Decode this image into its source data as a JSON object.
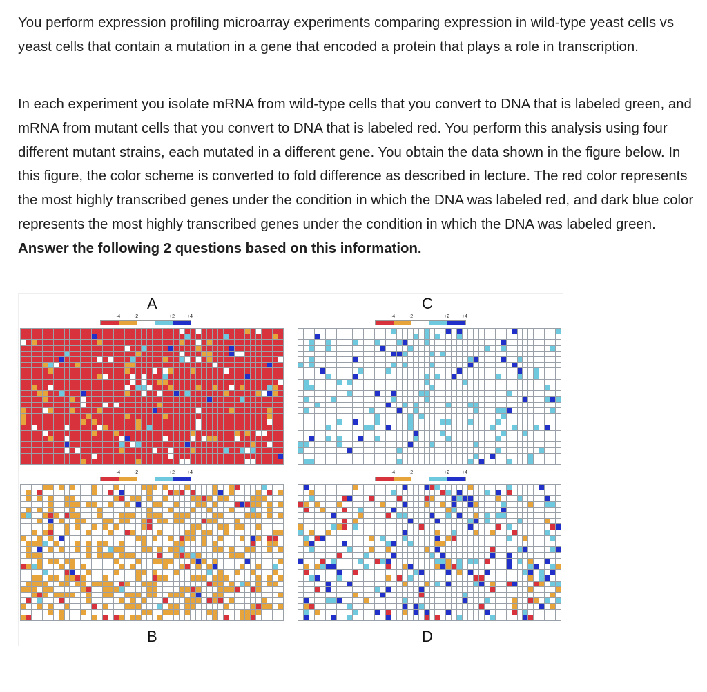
{
  "question": {
    "paragraph1": "You perform expression profiling microarray experiments comparing expression in wild-type yeast cells vs yeast cells that contain a mutation in a gene that encoded a protein that plays a role in transcription.",
    "paragraph2_text": "In each experiment you isolate mRNA from wild-type cells that you convert to DNA that is labeled green, and mRNA from mutant cells that you convert to DNA that is labeled red. You perform this analysis using four different mutant strains, each mutated in a different gene. You obtain the data shown in the figure below. In this figure, the color scheme is converted to fold difference as described in lecture. The red color represents the most highly transcribed genes under the condition in which the DNA was labeled red, and dark blue color represents the most highly transcribed genes under the condition in which the DNA was labeled green.",
    "paragraph2_bold": "Answer the following 2 questions based on this information."
  },
  "figure": {
    "panels": [
      {
        "label": "A",
        "dominant": "red"
      },
      {
        "label": "B",
        "dominant": "white-orange"
      },
      {
        "label": "C",
        "dominant": "white-light-blue"
      },
      {
        "label": "D",
        "dominant": "white-mixed"
      }
    ],
    "scale_ticks": [
      "-4",
      "-2",
      "+2",
      "+4"
    ],
    "scale_colors": {
      "minus4": "#d8323c",
      "minus2": "#e7a43a",
      "zero": "#ffffff",
      "plus2": "#6fc9de",
      "plus4": "#2030c8"
    },
    "cell_colors": {
      "red": "#d8323c",
      "orange": "#e7a43a",
      "white": "#ffffff",
      "light_blue": "#6fc9de",
      "dark_blue": "#2030c8"
    }
  }
}
